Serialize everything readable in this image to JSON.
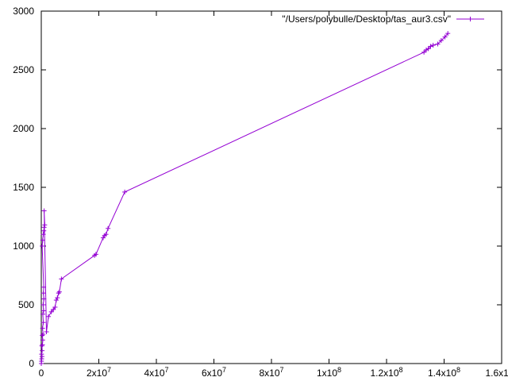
{
  "chart_data": {
    "type": "line",
    "title": "",
    "xlabel": "",
    "ylabel": "",
    "xlim": [
      0,
      160000000
    ],
    "ylim": [
      0,
      3000
    ],
    "grid": false,
    "legend_position": "top-right",
    "x_ticks": [
      {
        "value": 0,
        "label": "0"
      },
      {
        "value": 20000000,
        "label": "2x10^7"
      },
      {
        "value": 40000000,
        "label": "4x10^7"
      },
      {
        "value": 60000000,
        "label": "6x10^7"
      },
      {
        "value": 80000000,
        "label": "8x10^7"
      },
      {
        "value": 100000000,
        "label": "1x10^8"
      },
      {
        "value": 120000000,
        "label": "1.2x10^8"
      },
      {
        "value": 140000000,
        "label": "1.4x10^8"
      },
      {
        "value": 160000000,
        "label": "1.6x10^8"
      }
    ],
    "y_ticks": [
      {
        "value": 0,
        "label": "0"
      },
      {
        "value": 500,
        "label": "500"
      },
      {
        "value": 1000,
        "label": "1000"
      },
      {
        "value": 1500,
        "label": "1500"
      },
      {
        "value": 2000,
        "label": "2000"
      },
      {
        "value": 2500,
        "label": "2500"
      },
      {
        "value": 3000,
        "label": "3000"
      }
    ],
    "series": [
      {
        "name": "\"/Users/polybulle/Desktop/tas_aur3.csv\"",
        "color": "#9400d3",
        "marker": "plus",
        "x": [
          0,
          80000,
          150000,
          250000,
          100000,
          300000,
          200000,
          400000,
          500000,
          350000,
          600000,
          450000,
          700000,
          550000,
          800000,
          650000,
          900000,
          750000,
          850000,
          300000,
          500000,
          700000,
          900000,
          1000000,
          1200000,
          1000000,
          1800000,
          2500000,
          3500000,
          4200000,
          4800000,
          5200000,
          5600000,
          6000000,
          6300000,
          7000000,
          18500000,
          19000000,
          21500000,
          22000000,
          22500000,
          23200000,
          29000000,
          133000000,
          133800000,
          134500000,
          135300000,
          136200000,
          137800000,
          139000000,
          140300000,
          141300000
        ],
        "y": [
          0,
          20,
          40,
          60,
          80,
          110,
          150,
          160,
          200,
          240,
          250,
          300,
          350,
          420,
          450,
          500,
          550,
          600,
          650,
          1000,
          1050,
          1100,
          1130,
          1160,
          1180,
          1300,
          270,
          400,
          440,
          460,
          480,
          540,
          560,
          600,
          610,
          720,
          920,
          930,
          1070,
          1090,
          1100,
          1150,
          1460,
          2650,
          2670,
          2680,
          2700,
          2710,
          2720,
          2750,
          2780,
          2810
        ]
      }
    ]
  }
}
